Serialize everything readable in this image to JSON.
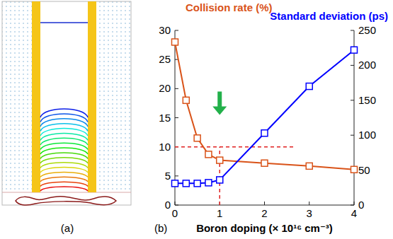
{
  "panel_a": {
    "label": "(a)"
  },
  "chart_data": {
    "type": "line",
    "panel_label": "(b)",
    "xlabel": "Boron doping (× 10¹⁶ cm⁻³)",
    "ylabel": "Collision rate (%)",
    "y2label": "Standard deviation (ps)",
    "x": [
      0,
      0.25,
      0.5,
      0.75,
      1,
      2,
      3,
      4
    ],
    "series": [
      {
        "color": "#d95319",
        "marker": "square",
        "line_style": "solid",
        "values": [
          28,
          18,
          11.5,
          8.7,
          7.7,
          7.2,
          6.7,
          6.1
        ]
      },
      {
        "color": "#0000ff",
        "marker": "square",
        "line_style": "solid",
        "axis": "y2",
        "values": [
          31,
          31,
          31,
          32,
          36,
          103,
          170,
          222
        ]
      }
    ],
    "xlim": [
      0,
      4
    ],
    "xticks": [
      0,
      1,
      2,
      3,
      4
    ],
    "ylim": [
      0,
      30
    ],
    "yticks": [
      0,
      5,
      10,
      15,
      20,
      25,
      30
    ],
    "y2lim": [
      0,
      250
    ],
    "y2ticks": [
      0,
      50,
      100,
      150,
      200,
      250
    ],
    "grid": false,
    "annotations": [
      {
        "type": "dashed_line",
        "color": "#e02020",
        "x": [
          0,
          2.7
        ],
        "y": [
          10,
          10
        ]
      },
      {
        "type": "dashed_line",
        "color": "#e02020",
        "x": [
          1,
          1
        ],
        "y": [
          0,
          10
        ]
      },
      {
        "type": "arrow",
        "color": "#22b04a",
        "x": [
          1,
          1
        ],
        "y": [
          19.5,
          15.5
        ]
      }
    ]
  }
}
